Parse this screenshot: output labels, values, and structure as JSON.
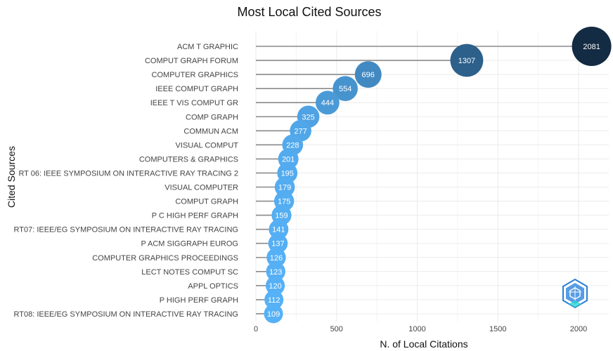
{
  "chart_data": {
    "type": "lollipop",
    "title": "Most Local Cited Sources",
    "xlabel": "N. of Local Citations",
    "ylabel": "Cited Sources",
    "xlim": [
      0,
      2081
    ],
    "xticks": [
      0,
      500,
      1000,
      1500,
      2000
    ],
    "grid": true,
    "categories": [
      "ACM T GRAPHIC",
      "COMPUT GRAPH FORUM",
      "COMPUTER GRAPHICS",
      "IEEE COMPUT GRAPH",
      "IEEE T VIS COMPUT GR",
      "COMP GRAPH",
      "COMMUN ACM",
      "VISUAL COMPUT",
      "COMPUTERS & GRAPHICS",
      "RT 06: IEEE SYMPOSIUM ON INTERACTIVE RAY TRACING 2",
      "VISUAL COMPUTER",
      "COMPUT GRAPH",
      "P C HIGH PERF GRAPH",
      "RT07: IEEE/EG SYMPOSIUM ON INTERACTIVE RAY TRACING",
      "P ACM SIGGRAPH EUROG",
      "COMPUTER GRAPHICS PROCEEDINGS",
      "LECT NOTES COMPUT SC",
      "APPL OPTICS",
      "P HIGH PERF GRAPH",
      "RT08: IEEE/EG SYMPOSIUM ON INTERACTIVE RAY TRACING"
    ],
    "values": [
      2081,
      1307,
      696,
      554,
      444,
      325,
      277,
      228,
      201,
      195,
      179,
      175,
      159,
      141,
      137,
      126,
      123,
      120,
      112,
      109
    ],
    "color_scale": {
      "low": "#56b1f7",
      "high": "#132b43"
    },
    "stem_color": "#8a8a8a",
    "watermark": "bibliometrix-logo-icon"
  }
}
